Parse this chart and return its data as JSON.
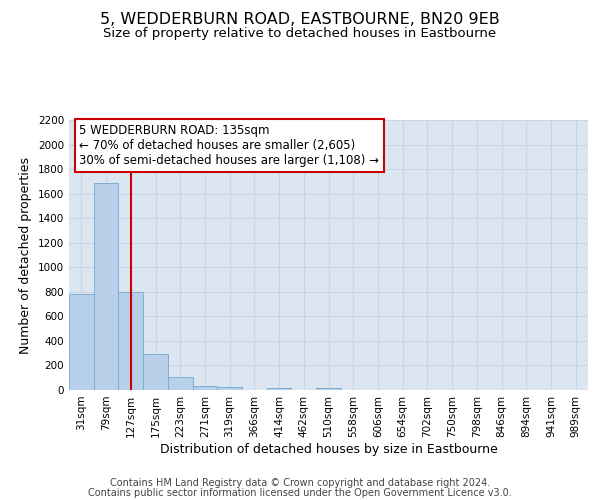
{
  "title": "5, WEDDERBURN ROAD, EASTBOURNE, BN20 9EB",
  "subtitle": "Size of property relative to detached houses in Eastbourne",
  "xlabel": "Distribution of detached houses by size in Eastbourne",
  "ylabel": "Number of detached properties",
  "footnote1": "Contains HM Land Registry data © Crown copyright and database right 2024.",
  "footnote2": "Contains public sector information licensed under the Open Government Licence v3.0.",
  "categories": [
    "31sqm",
    "79sqm",
    "127sqm",
    "175sqm",
    "223sqm",
    "271sqm",
    "319sqm",
    "366sqm",
    "414sqm",
    "462sqm",
    "510sqm",
    "558sqm",
    "606sqm",
    "654sqm",
    "702sqm",
    "750sqm",
    "798sqm",
    "846sqm",
    "894sqm",
    "941sqm",
    "989sqm"
  ],
  "values": [
    780,
    1690,
    800,
    295,
    110,
    35,
    22,
    0,
    18,
    0,
    18,
    0,
    0,
    0,
    0,
    0,
    0,
    0,
    0,
    0,
    0
  ],
  "bar_color": "#b8d0ea",
  "bar_edge_color": "#7bafd4",
  "bar_edge_width": 0.7,
  "grid_color": "#c8d4e8",
  "bg_color": "#dce6f0",
  "red_line_x": 2,
  "red_line_color": "#cc0000",
  "ylim": [
    0,
    2200
  ],
  "yticks": [
    0,
    200,
    400,
    600,
    800,
    1000,
    1200,
    1400,
    1600,
    1800,
    2000,
    2200
  ],
  "annotation_text": "5 WEDDERBURN ROAD: 135sqm\n← 70% of detached houses are smaller (2,605)\n30% of semi-detached houses are larger (1,108) →",
  "annotation_box_color": "#ffffff",
  "annotation_box_edge_color": "#cc0000",
  "title_fontsize": 11.5,
  "subtitle_fontsize": 9.5,
  "axis_label_fontsize": 9,
  "tick_fontsize": 7.5,
  "annotation_fontsize": 8.5,
  "footnote_fontsize": 7
}
